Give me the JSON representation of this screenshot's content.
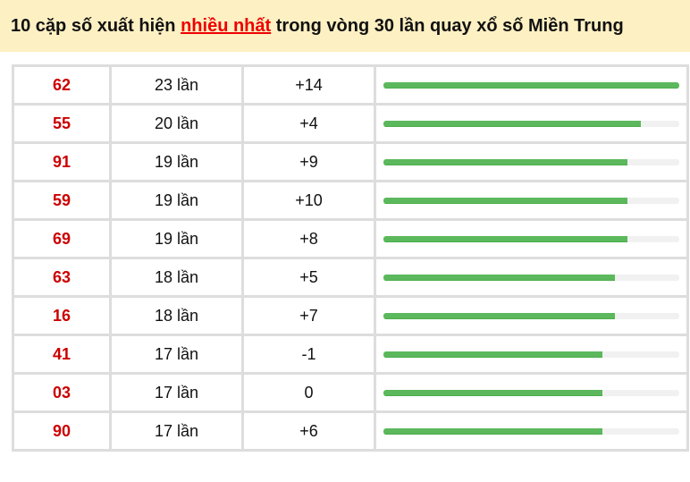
{
  "header": {
    "title_prefix": "10 cặp số xuất hiện ",
    "title_highlight": "nhiều nhất",
    "title_suffix": " trong vòng 30 lần quay xổ số Miền Trung"
  },
  "colors": {
    "number": "#cc0000",
    "bar": "#5cb85c",
    "header_bg": "#fdf0c2",
    "highlight": "#ee0000"
  },
  "rows": [
    {
      "number": "62",
      "count": "23 lần",
      "diff": "+14",
      "progress": 1.0
    },
    {
      "number": "55",
      "count": "20 lần",
      "diff": "+4",
      "progress": 0.87
    },
    {
      "number": "91",
      "count": "19 lần",
      "diff": "+9",
      "progress": 0.826
    },
    {
      "number": "59",
      "count": "19 lần",
      "diff": "+10",
      "progress": 0.826
    },
    {
      "number": "69",
      "count": "19 lần",
      "diff": "+8",
      "progress": 0.826
    },
    {
      "number": "63",
      "count": "18 lần",
      "diff": "+5",
      "progress": 0.783
    },
    {
      "number": "16",
      "count": "18 lần",
      "diff": "+7",
      "progress": 0.783
    },
    {
      "number": "41",
      "count": "17 lần",
      "diff": "-1",
      "progress": 0.739
    },
    {
      "number": "03",
      "count": "17 lần",
      "diff": "0",
      "progress": 0.739
    },
    {
      "number": "90",
      "count": "17 lần",
      "diff": "+6",
      "progress": 0.739
    }
  ]
}
